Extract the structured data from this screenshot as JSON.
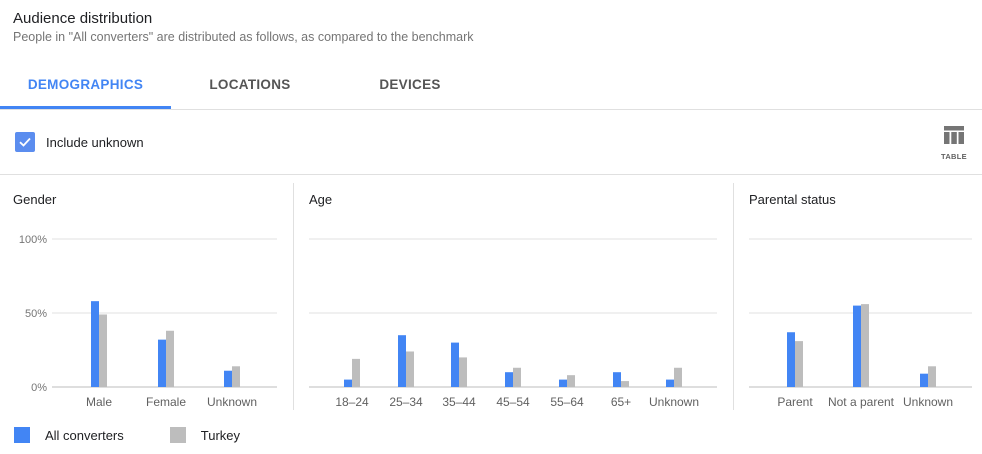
{
  "header": {
    "title": "Audience distribution",
    "subtitle": "People in \"All converters\" are distributed as follows, as compared to the benchmark"
  },
  "tabs": [
    {
      "label": "DEMOGRAPHICS",
      "active": true
    },
    {
      "label": "LOCATIONS",
      "active": false
    },
    {
      "label": "DEVICES",
      "active": false
    }
  ],
  "toolbar": {
    "include_unknown_label": "Include unknown",
    "include_unknown_checked": true,
    "table_label": "TABLE",
    "table_icon": "table-icon"
  },
  "colors": {
    "accent": "#4285f4",
    "series_all_converters": "#4285f4",
    "series_turkey": "#bdbdbd"
  },
  "legend": [
    {
      "label": "All converters",
      "color": "#4285f4"
    },
    {
      "label": "Turkey",
      "color": "#bdbdbd"
    }
  ],
  "chart_data": [
    {
      "type": "bar",
      "title": "Gender",
      "categories": [
        "Male",
        "Female",
        "Unknown"
      ],
      "series": [
        {
          "name": "All converters",
          "values": [
            58,
            32,
            11
          ]
        },
        {
          "name": "Turkey",
          "values": [
            49,
            38,
            14
          ]
        }
      ],
      "ylim": [
        0,
        100
      ],
      "yticks": [
        "0%",
        "50%",
        "100%"
      ],
      "grid": true
    },
    {
      "type": "bar",
      "title": "Age",
      "categories": [
        "18–24",
        "25–34",
        "35–44",
        "45–54",
        "55–64",
        "65+",
        "Unknown"
      ],
      "series": [
        {
          "name": "All converters",
          "values": [
            5,
            35,
            30,
            10,
            5,
            10,
            5
          ]
        },
        {
          "name": "Turkey",
          "values": [
            19,
            24,
            20,
            13,
            8,
            4,
            13
          ]
        }
      ],
      "ylim": [
        0,
        100
      ],
      "grid": true
    },
    {
      "type": "bar",
      "title": "Parental status",
      "categories": [
        "Parent",
        "Not a parent",
        "Unknown"
      ],
      "series": [
        {
          "name": "All converters",
          "values": [
            37,
            55,
            9
          ]
        },
        {
          "name": "Turkey",
          "values": [
            31,
            56,
            14
          ]
        }
      ],
      "ylim": [
        0,
        100
      ],
      "grid": true
    }
  ]
}
